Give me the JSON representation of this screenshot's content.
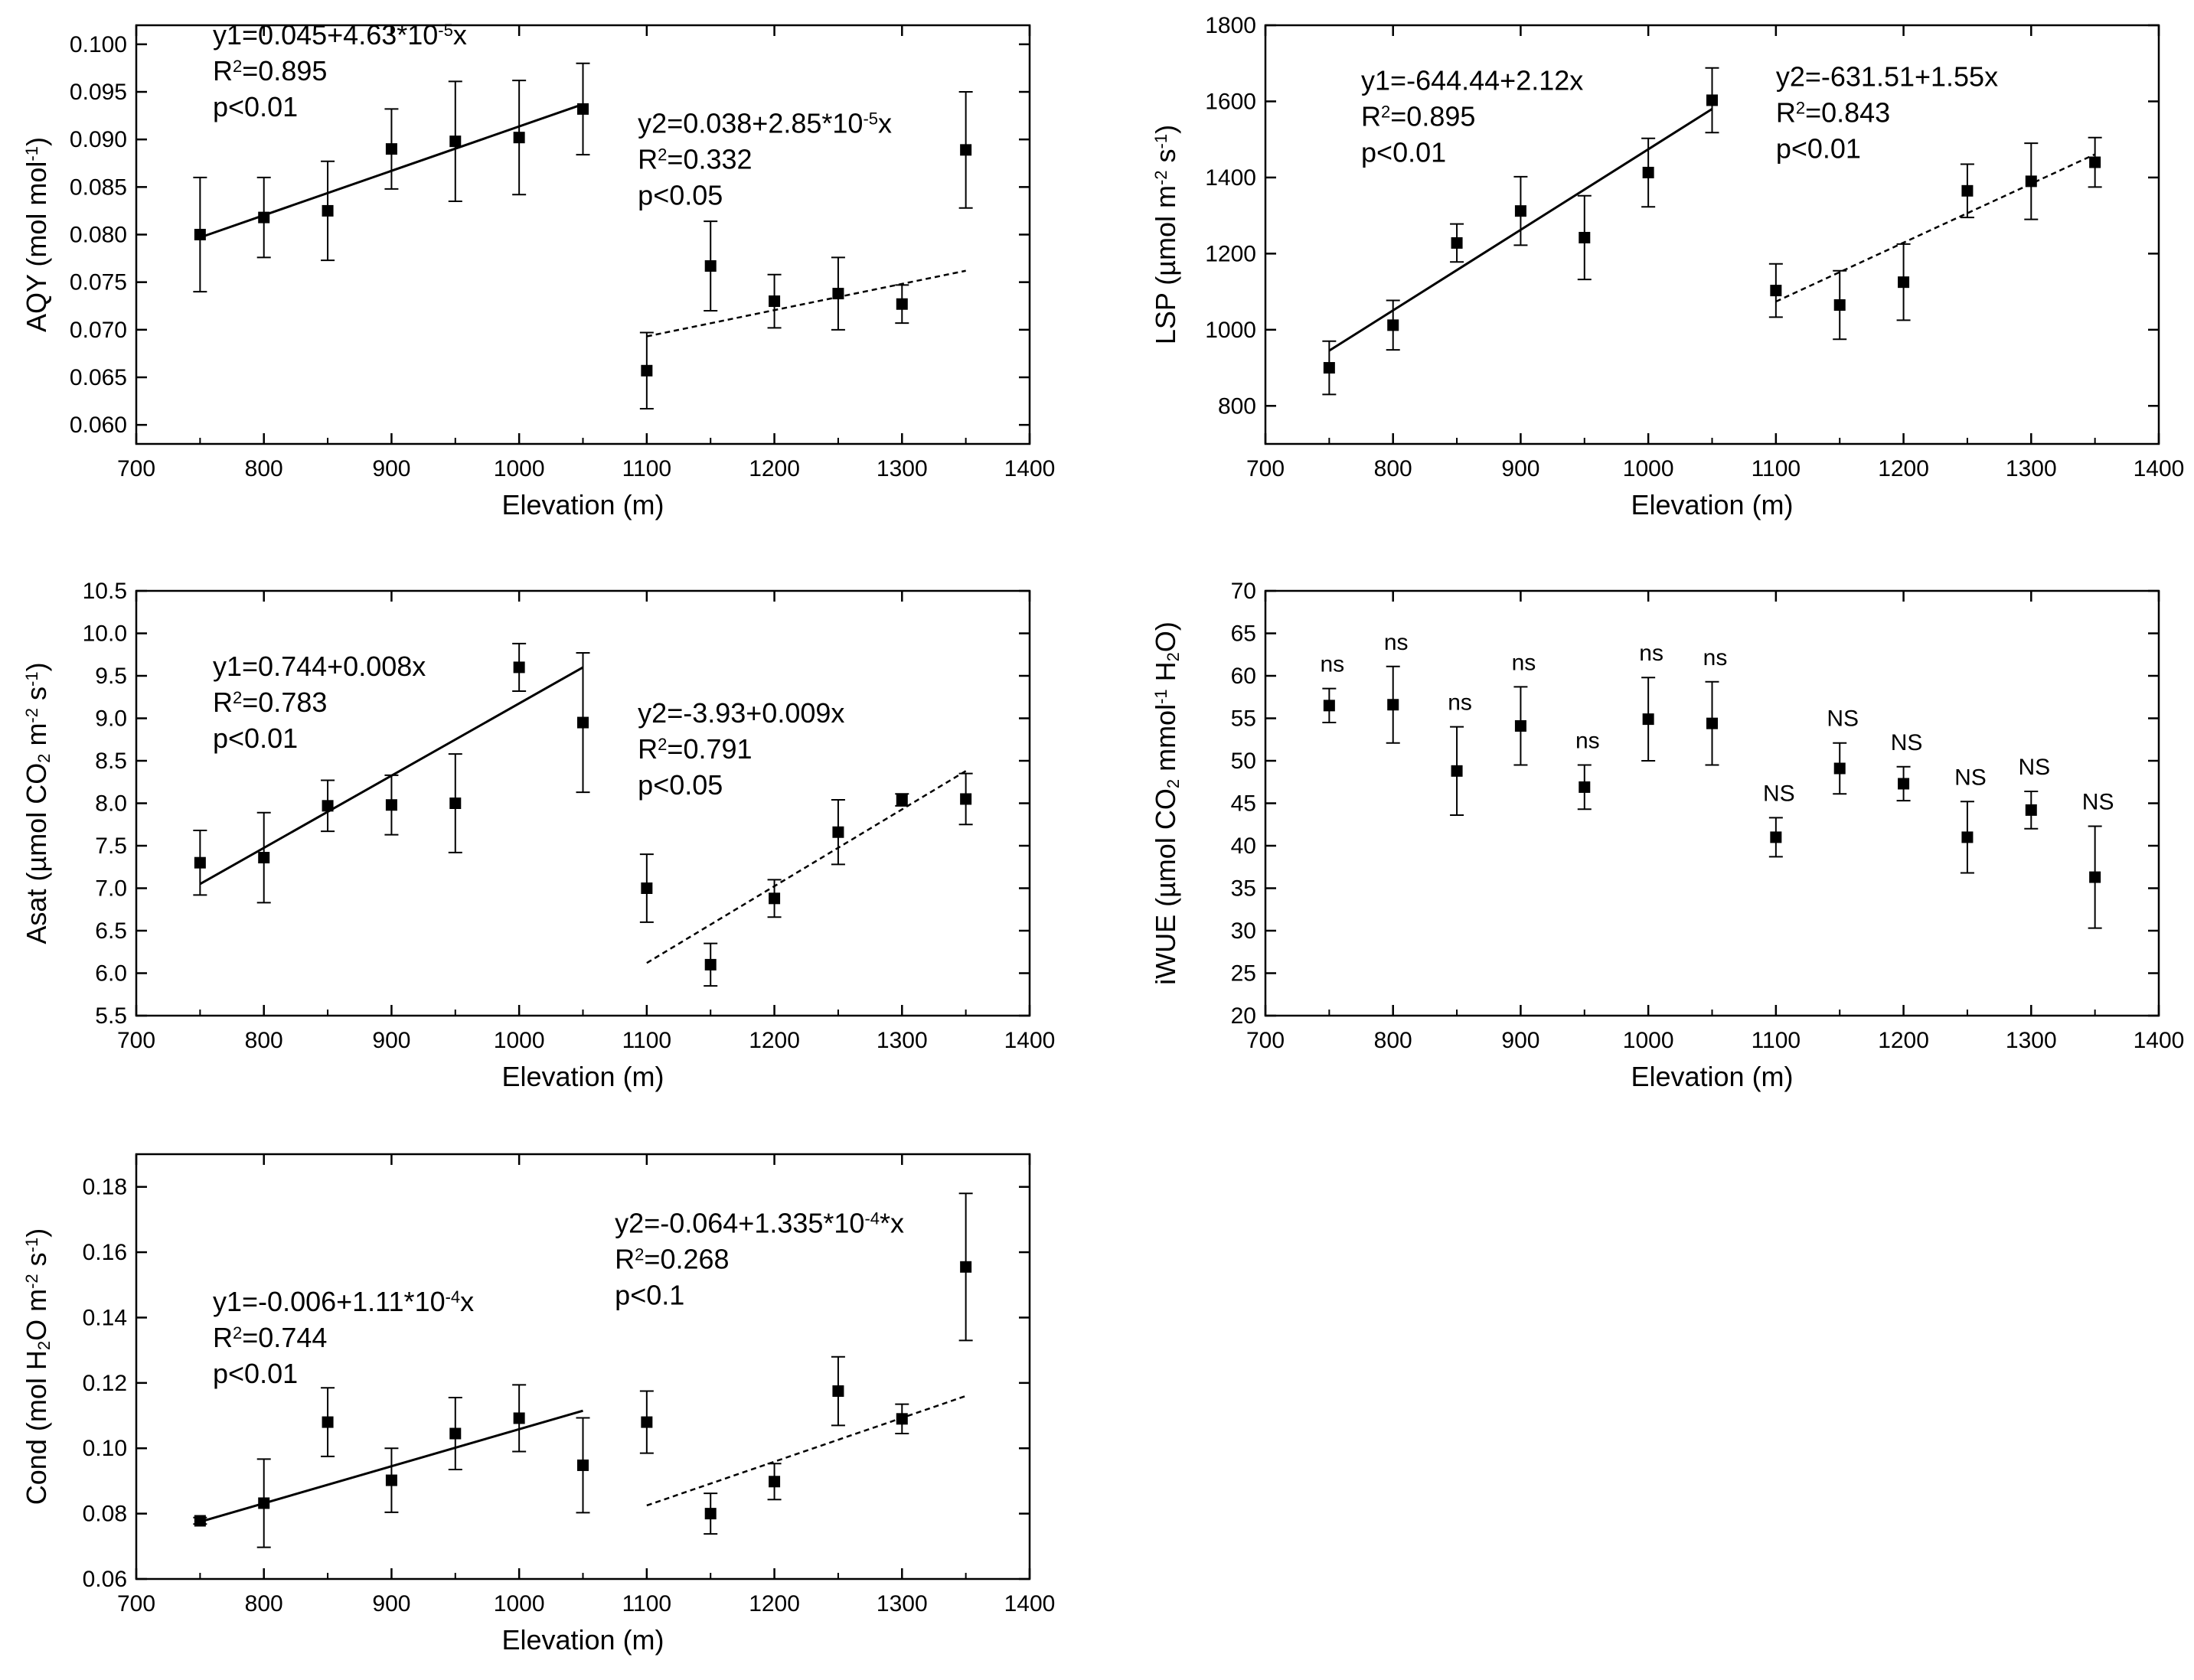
{
  "chart_data": [
    {
      "type": "scatter",
      "id": "aqy",
      "xlabel": "Elevation (m)",
      "ylabel": [
        [
          "AQY (mol mol"
        ],
        [
          "-1",
          "sup"
        ],
        [
          ")"
        ]
      ],
      "xlim": [
        700,
        1400
      ],
      "xticks": [
        700,
        800,
        900,
        1000,
        1100,
        1200,
        1300,
        1400
      ],
      "ylim": [
        0.058,
        0.102
      ],
      "yticks": [
        "0.060",
        "0.065",
        "0.070",
        "0.075",
        "0.080",
        "0.085",
        "0.090",
        "0.095",
        "0.100"
      ],
      "points": [
        {
          "x": 750,
          "y": 0.08,
          "err": 0.006
        },
        {
          "x": 800,
          "y": 0.0818,
          "err": 0.0042
        },
        {
          "x": 850,
          "y": 0.0825,
          "err": 0.0052
        },
        {
          "x": 900,
          "y": 0.089,
          "err": 0.0042
        },
        {
          "x": 950,
          "y": 0.0898,
          "err": 0.0063
        },
        {
          "x": 1000,
          "y": 0.0902,
          "err": 0.006
        },
        {
          "x": 1050,
          "y": 0.0932,
          "err": 0.0048
        },
        {
          "x": 1100,
          "y": 0.0657,
          "err": 0.004
        },
        {
          "x": 1150,
          "y": 0.0767,
          "err": 0.0047
        },
        {
          "x": 1200,
          "y": 0.073,
          "err": 0.0028
        },
        {
          "x": 1250,
          "y": 0.0738,
          "err": 0.0038
        },
        {
          "x": 1300,
          "y": 0.0727,
          "err": 0.002
        },
        {
          "x": 1350,
          "y": 0.0889,
          "err": 0.0061
        }
      ],
      "fits": [
        {
          "x": [
            750,
            1050
          ],
          "y": [
            0.0797,
            0.0937
          ],
          "style": "solid"
        },
        {
          "x": [
            1100,
            1350
          ],
          "y": [
            0.0693,
            0.0762
          ],
          "style": "dashed"
        }
      ],
      "equations": [
        {
          "x": 760,
          "y": 0.1,
          "lines": [
            [
              [
                "y1=0.045+4.63*10"
              ],
              [
                "-5",
                "sup"
              ],
              [
                "x"
              ]
            ],
            [
              [
                "R"
              ],
              [
                "2",
                "sup"
              ],
              [
                "=0.895"
              ]
            ],
            [
              [
                "p<0.01"
              ]
            ]
          ]
        },
        {
          "x": 1093,
          "y": 0.0907,
          "lines": [
            [
              [
                "y2=0.038+2.85*10"
              ],
              [
                "-5",
                "sup"
              ],
              [
                "x"
              ]
            ],
            [
              [
                "R"
              ],
              [
                "2",
                "sup"
              ],
              [
                "=0.332"
              ]
            ],
            [
              [
                "p<0.05"
              ]
            ]
          ]
        }
      ]
    },
    {
      "type": "scatter",
      "id": "lsp",
      "xlabel": "Elevation (m)",
      "ylabel": [
        [
          "LSP (µmol m"
        ],
        [
          "-2",
          "sup"
        ],
        [
          " s"
        ],
        [
          "-1",
          "sup"
        ],
        [
          ")"
        ]
      ],
      "xlim": [
        700,
        1400
      ],
      "xticks": [
        700,
        800,
        900,
        1000,
        1100,
        1200,
        1300,
        1400
      ],
      "ylim": [
        700,
        1800
      ],
      "yticks": [
        "800",
        "1000",
        "1200",
        "1400",
        "1600",
        "1800"
      ],
      "points": [
        {
          "x": 750,
          "y": 900,
          "err": 70
        },
        {
          "x": 800,
          "y": 1012,
          "err": 65
        },
        {
          "x": 850,
          "y": 1228,
          "err": 50
        },
        {
          "x": 900,
          "y": 1312,
          "err": 90
        },
        {
          "x": 950,
          "y": 1242,
          "err": 110
        },
        {
          "x": 1000,
          "y": 1413,
          "err": 90
        },
        {
          "x": 1050,
          "y": 1603,
          "err": 85
        },
        {
          "x": 1100,
          "y": 1103,
          "err": 70
        },
        {
          "x": 1150,
          "y": 1065,
          "err": 90
        },
        {
          "x": 1200,
          "y": 1125,
          "err": 100
        },
        {
          "x": 1250,
          "y": 1365,
          "err": 70
        },
        {
          "x": 1300,
          "y": 1390,
          "err": 100
        },
        {
          "x": 1350,
          "y": 1440,
          "err": 65
        }
      ],
      "fits": [
        {
          "x": [
            750,
            1050
          ],
          "y": [
            945,
            1580
          ],
          "style": "solid"
        },
        {
          "x": [
            1100,
            1350
          ],
          "y": [
            1074,
            1461
          ],
          "style": "dashed"
        }
      ],
      "equations": [
        {
          "x": 775,
          "y": 1630,
          "lines": [
            [
              [
                "y1=-644.44+2.12x"
              ]
            ],
            [
              [
                "R"
              ],
              [
                "2",
                "sup"
              ],
              [
                "=0.895"
              ]
            ],
            [
              [
                "p<0.01"
              ]
            ]
          ]
        },
        {
          "x": 1100,
          "y": 1640,
          "lines": [
            [
              [
                "y2=-631.51+1.55x"
              ]
            ],
            [
              [
                "R"
              ],
              [
                "2",
                "sup"
              ],
              [
                "=0.843"
              ]
            ],
            [
              [
                "p<0.01"
              ]
            ]
          ]
        }
      ]
    },
    {
      "type": "scatter",
      "id": "asat",
      "xlabel": "Elevation (m)",
      "ylabel": [
        [
          "Asat (µmol CO"
        ],
        [
          "2",
          "sub"
        ],
        [
          " m"
        ],
        [
          "-2",
          "sup"
        ],
        [
          " s"
        ],
        [
          "-1",
          "sup"
        ],
        [
          ")"
        ]
      ],
      "xlim": [
        700,
        1400
      ],
      "xticks": [
        700,
        800,
        900,
        1000,
        1100,
        1200,
        1300,
        1400
      ],
      "ylim": [
        5.5,
        10.5
      ],
      "yticks": [
        "5.5",
        "6.0",
        "6.5",
        "7.0",
        "7.5",
        "8.0",
        "8.5",
        "9.0",
        "9.5",
        "10.0",
        "10.5"
      ],
      "points": [
        {
          "x": 750,
          "y": 7.3,
          "err": 0.38
        },
        {
          "x": 800,
          "y": 7.36,
          "err": 0.53
        },
        {
          "x": 850,
          "y": 7.97,
          "err": 0.3
        },
        {
          "x": 900,
          "y": 7.98,
          "err": 0.35
        },
        {
          "x": 950,
          "y": 8.0,
          "err": 0.58
        },
        {
          "x": 1000,
          "y": 9.6,
          "err": 0.28
        },
        {
          "x": 1050,
          "y": 8.95,
          "err": 0.82
        },
        {
          "x": 1100,
          "y": 7.0,
          "err": 0.4
        },
        {
          "x": 1150,
          "y": 6.1,
          "err": 0.25
        },
        {
          "x": 1200,
          "y": 6.88,
          "err": 0.22
        },
        {
          "x": 1250,
          "y": 7.66,
          "err": 0.38
        },
        {
          "x": 1300,
          "y": 8.04,
          "err": 0.07
        },
        {
          "x": 1350,
          "y": 8.05,
          "err": 0.3
        }
      ],
      "fits": [
        {
          "x": [
            750,
            1050
          ],
          "y": [
            7.05,
            9.6
          ],
          "style": "solid"
        },
        {
          "x": [
            1100,
            1350
          ],
          "y": [
            6.12,
            8.38
          ],
          "style": "dashed"
        }
      ],
      "equations": [
        {
          "x": 760,
          "y": 9.5,
          "lines": [
            [
              [
                "y1=0.744+0.008x"
              ]
            ],
            [
              [
                "R"
              ],
              [
                "2",
                "sup"
              ],
              [
                "=0.783"
              ]
            ],
            [
              [
                "p<0.01"
              ]
            ]
          ]
        },
        {
          "x": 1093,
          "y": 8.95,
          "lines": [
            [
              [
                "y2=-3.93+0.009x"
              ]
            ],
            [
              [
                "R"
              ],
              [
                "2",
                "sup"
              ],
              [
                "=0.791"
              ]
            ],
            [
              [
                "p<0.05"
              ]
            ]
          ]
        }
      ]
    },
    {
      "type": "scatter",
      "id": "iwue",
      "xlabel": "Elevation (m)",
      "ylabel": [
        [
          "iWUE (µmol CO"
        ],
        [
          "2",
          "sub"
        ],
        [
          " mmol"
        ],
        [
          "-1",
          "sup"
        ],
        [
          " H"
        ],
        [
          "2",
          "sub"
        ],
        [
          "O)"
        ]
      ],
      "xlim": [
        700,
        1400
      ],
      "xticks": [
        700,
        800,
        900,
        1000,
        1100,
        1200,
        1300,
        1400
      ],
      "ylim": [
        20,
        70
      ],
      "yticks": [
        "20",
        "25",
        "30",
        "35",
        "40",
        "45",
        "50",
        "55",
        "60",
        "65",
        "70"
      ],
      "points": [
        {
          "x": 750,
          "y": 56.5,
          "err": 2.0,
          "label": "ns"
        },
        {
          "x": 800,
          "y": 56.6,
          "err": 4.5,
          "label": "ns"
        },
        {
          "x": 850,
          "y": 48.8,
          "err": 5.2,
          "label": "ns"
        },
        {
          "x": 900,
          "y": 54.1,
          "err": 4.6,
          "label": "ns"
        },
        {
          "x": 950,
          "y": 46.9,
          "err": 2.6,
          "label": "ns"
        },
        {
          "x": 1000,
          "y": 54.9,
          "err": 4.9,
          "label": "ns"
        },
        {
          "x": 1050,
          "y": 54.4,
          "err": 4.9,
          "label": "ns"
        },
        {
          "x": 1100,
          "y": 41.0,
          "err": 2.3,
          "label": "NS"
        },
        {
          "x": 1150,
          "y": 49.1,
          "err": 3.0,
          "label": "NS"
        },
        {
          "x": 1200,
          "y": 47.3,
          "err": 2.0,
          "label": "NS"
        },
        {
          "x": 1250,
          "y": 41.0,
          "err": 4.2,
          "label": "NS"
        },
        {
          "x": 1300,
          "y": 44.2,
          "err": 2.2,
          "label": "NS"
        },
        {
          "x": 1350,
          "y": 36.3,
          "err": 6.0,
          "label": "NS"
        }
      ],
      "fits": [],
      "equations": []
    },
    {
      "type": "scatter",
      "id": "cond",
      "xlabel": "Elevation (m)",
      "ylabel": [
        [
          "Cond (mol H"
        ],
        [
          "2",
          "sub"
        ],
        [
          "O m"
        ],
        [
          "-2",
          "sup"
        ],
        [
          " s"
        ],
        [
          "-1",
          "sup"
        ],
        [
          ")"
        ]
      ],
      "xlim": [
        700,
        1400
      ],
      "xticks": [
        700,
        800,
        900,
        1000,
        1100,
        1200,
        1300,
        1400
      ],
      "ylim": [
        0.06,
        0.19
      ],
      "yticks": [
        "0.06",
        "0.08",
        "0.10",
        "0.12",
        "0.14",
        "0.16",
        "0.18"
      ],
      "points": [
        {
          "x": 750,
          "y": 0.0778,
          "err": 0.001
        },
        {
          "x": 800,
          "y": 0.0832,
          "err": 0.0135
        },
        {
          "x": 850,
          "y": 0.108,
          "err": 0.0105
        },
        {
          "x": 900,
          "y": 0.0902,
          "err": 0.0098
        },
        {
          "x": 950,
          "y": 0.1045,
          "err": 0.011
        },
        {
          "x": 1000,
          "y": 0.1092,
          "err": 0.0102
        },
        {
          "x": 1050,
          "y": 0.0948,
          "err": 0.0145
        },
        {
          "x": 1100,
          "y": 0.108,
          "err": 0.0095
        },
        {
          "x": 1150,
          "y": 0.08,
          "err": 0.0062
        },
        {
          "x": 1200,
          "y": 0.0898,
          "err": 0.0055
        },
        {
          "x": 1250,
          "y": 0.1175,
          "err": 0.0105
        },
        {
          "x": 1300,
          "y": 0.109,
          "err": 0.0045
        },
        {
          "x": 1350,
          "y": 0.1555,
          "err": 0.0225
        }
      ],
      "fits": [
        {
          "x": [
            750,
            1050
          ],
          "y": [
            0.0775,
            0.1115
          ],
          "style": "solid"
        },
        {
          "x": [
            1100,
            1350
          ],
          "y": [
            0.0825,
            0.116
          ],
          "style": "dashed"
        }
      ],
      "equations": [
        {
          "x": 760,
          "y": 0.142,
          "lines": [
            [
              [
                "y1=-0.006+1.11*10"
              ],
              [
                "-4",
                "sup"
              ],
              [
                "x"
              ]
            ],
            [
              [
                "R"
              ],
              [
                "2",
                "sup"
              ],
              [
                "=0.744"
              ]
            ],
            [
              [
                "p<0.01"
              ]
            ]
          ]
        },
        {
          "x": 1075,
          "y": 0.166,
          "lines": [
            [
              [
                "y2=-0.064+1.335*10"
              ],
              [
                "-4",
                "sup"
              ],
              [
                "*x"
              ]
            ],
            [
              [
                "R"
              ],
              [
                "2",
                "sup"
              ],
              [
                "=0.268"
              ]
            ],
            [
              [
                "p<0.1"
              ]
            ]
          ]
        }
      ]
    }
  ]
}
